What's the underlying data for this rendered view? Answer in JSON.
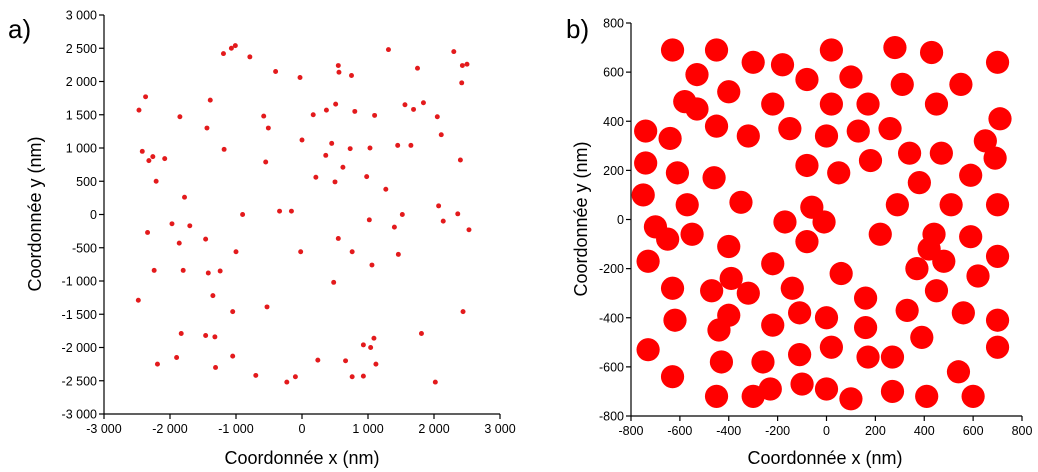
{
  "chart_data": [
    {
      "type": "scatter",
      "panel_label": "a)",
      "xlabel": "Coordonnée x (nm)",
      "ylabel": "Coordonnée y (nm)",
      "xlim": [
        -3000,
        3000
      ],
      "ylim": [
        -3000,
        3000
      ],
      "xticks": [
        -3000,
        -2000,
        -1000,
        0,
        1000,
        2000,
        3000
      ],
      "yticks": [
        -3000,
        -2500,
        -2000,
        -1500,
        -1000,
        -500,
        0,
        500,
        1000,
        1500,
        2000,
        2500,
        3000
      ],
      "xtick_labels": [
        "-3 000",
        "-2 000",
        "-1 000",
        "0",
        "1 000",
        "2 000",
        "3 000"
      ],
      "ytick_labels": [
        "-3 000",
        "-2 500",
        "-2 000",
        "-1 500",
        "-1 000",
        "-500",
        "0",
        "500",
        "1 000",
        "1 500",
        "2 000",
        "2 500",
        "3 000"
      ],
      "marker_color": "#e31a1c",
      "marker_size_nm": 75,
      "grid": false,
      "points": [
        [
          -1070,
          2500
        ],
        [
          -1010,
          2540
        ],
        [
          -1190,
          2420
        ],
        [
          -790,
          2370
        ],
        [
          -400,
          2150
        ],
        [
          -30,
          2060
        ],
        [
          550,
          2240
        ],
        [
          750,
          2090
        ],
        [
          1310,
          2480
        ],
        [
          2300,
          2450
        ],
        [
          2500,
          2260
        ],
        [
          2430,
          2240
        ],
        [
          1750,
          2200
        ],
        [
          2420,
          1980
        ],
        [
          -2470,
          1570
        ],
        [
          -2370,
          1770
        ],
        [
          -1850,
          1470
        ],
        [
          -1390,
          1720
        ],
        [
          -1440,
          1300
        ],
        [
          -580,
          1480
        ],
        [
          -510,
          1300
        ],
        [
          170,
          1500
        ],
        [
          370,
          1570
        ],
        [
          510,
          1660
        ],
        [
          560,
          2140
        ],
        [
          800,
          1550
        ],
        [
          1100,
          1490
        ],
        [
          1560,
          1650
        ],
        [
          1690,
          1580
        ],
        [
          1840,
          1680
        ],
        [
          2050,
          1470
        ],
        [
          2110,
          1200
        ],
        [
          -2420,
          950
        ],
        [
          -2320,
          810
        ],
        [
          -2260,
          870
        ],
        [
          -2080,
          840
        ],
        [
          -2210,
          500
        ],
        [
          -1180,
          980
        ],
        [
          -550,
          790
        ],
        [
          0,
          1120
        ],
        [
          210,
          560
        ],
        [
          360,
          890
        ],
        [
          450,
          1070
        ],
        [
          620,
          710
        ],
        [
          730,
          990
        ],
        [
          1030,
          1000
        ],
        [
          1450,
          1040
        ],
        [
          1650,
          1040
        ],
        [
          2400,
          820
        ],
        [
          -1780,
          260
        ],
        [
          -900,
          0
        ],
        [
          -340,
          50
        ],
        [
          -160,
          50
        ],
        [
          500,
          490
        ],
        [
          980,
          570
        ],
        [
          1270,
          380
        ],
        [
          1520,
          0
        ],
        [
          2070,
          130
        ],
        [
          2140,
          -100
        ],
        [
          2360,
          10
        ],
        [
          2530,
          -230
        ],
        [
          -2340,
          -270
        ],
        [
          -2240,
          -840
        ],
        [
          -1970,
          -140
        ],
        [
          -1860,
          -430
        ],
        [
          -1800,
          -840
        ],
        [
          -1700,
          -170
        ],
        [
          -1460,
          -370
        ],
        [
          -1420,
          -880
        ],
        [
          -1240,
          -850
        ],
        [
          -1350,
          -1220
        ],
        [
          -1000,
          -560
        ],
        [
          -1050,
          -1460
        ],
        [
          -20,
          -560
        ],
        [
          550,
          -360
        ],
        [
          760,
          -560
        ],
        [
          1020,
          -80
        ],
        [
          1060,
          -760
        ],
        [
          1400,
          -190
        ],
        [
          1460,
          -600
        ],
        [
          480,
          -1020
        ],
        [
          -2480,
          -1290
        ],
        [
          -530,
          -1390
        ],
        [
          -1460,
          -1820
        ],
        [
          -1900,
          -2150
        ],
        [
          -2190,
          -2250
        ],
        [
          -1830,
          -1790
        ],
        [
          -1320,
          -1840
        ],
        [
          -1310,
          -2300
        ],
        [
          -1050,
          -2130
        ],
        [
          -700,
          -2420
        ],
        [
          -230,
          -2520
        ],
        [
          -100,
          -2440
        ],
        [
          240,
          -2190
        ],
        [
          660,
          -2200
        ],
        [
          760,
          -2440
        ],
        [
          930,
          -2430
        ],
        [
          930,
          -1960
        ],
        [
          1040,
          -2000
        ],
        [
          1090,
          -1860
        ],
        [
          1120,
          -2250
        ],
        [
          1810,
          -1790
        ],
        [
          2020,
          -2520
        ],
        [
          2440,
          -1460
        ]
      ]
    },
    {
      "type": "scatter",
      "panel_label": "b)",
      "xlabel": "Coordonnée x (nm)",
      "ylabel": "Coordonnée y (nm)",
      "xlim": [
        -800,
        800
      ],
      "ylim": [
        -800,
        800
      ],
      "xticks": [
        -800,
        -600,
        -400,
        -200,
        0,
        200,
        400,
        600,
        800
      ],
      "yticks": [
        -800,
        -600,
        -400,
        -200,
        0,
        200,
        400,
        600,
        800
      ],
      "xtick_labels": [
        "-800",
        "-600",
        "-400",
        "-200",
        "0",
        "200",
        "400",
        "600",
        "800"
      ],
      "ytick_labels": [
        "-800",
        "-600",
        "-400",
        "-200",
        "0",
        "200",
        "400",
        "600",
        "800"
      ],
      "marker_color": "#ff0000",
      "marker_size_nm": 95,
      "grid": false,
      "points": [
        [
          -630,
          690
        ],
        [
          -450,
          690
        ],
        [
          -300,
          640
        ],
        [
          -180,
          630
        ],
        [
          20,
          690
        ],
        [
          280,
          700
        ],
        [
          430,
          680
        ],
        [
          700,
          640
        ],
        [
          -530,
          590
        ],
        [
          -400,
          520
        ],
        [
          -580,
          480
        ],
        [
          -530,
          450
        ],
        [
          -80,
          570
        ],
        [
          100,
          580
        ],
        [
          310,
          550
        ],
        [
          550,
          550
        ],
        [
          -740,
          360
        ],
        [
          -640,
          330
        ],
        [
          -450,
          380
        ],
        [
          -320,
          340
        ],
        [
          -220,
          470
        ],
        [
          20,
          470
        ],
        [
          170,
          470
        ],
        [
          450,
          470
        ],
        [
          -150,
          370
        ],
        [
          0,
          340
        ],
        [
          130,
          360
        ],
        [
          260,
          370
        ],
        [
          650,
          320
        ],
        [
          710,
          410
        ],
        [
          -740,
          230
        ],
        [
          -610,
          190
        ],
        [
          -460,
          170
        ],
        [
          -80,
          220
        ],
        [
          50,
          190
        ],
        [
          180,
          240
        ],
        [
          340,
          270
        ],
        [
          470,
          270
        ],
        [
          590,
          180
        ],
        [
          690,
          250
        ],
        [
          -750,
          100
        ],
        [
          -570,
          60
        ],
        [
          -350,
          70
        ],
        [
          -60,
          50
        ],
        [
          290,
          60
        ],
        [
          380,
          150
        ],
        [
          510,
          60
        ],
        [
          700,
          60
        ],
        [
          -700,
          -30
        ],
        [
          -550,
          -60
        ],
        [
          -650,
          -80
        ],
        [
          -170,
          -10
        ],
        [
          -10,
          -10
        ],
        [
          220,
          -60
        ],
        [
          440,
          -60
        ],
        [
          -400,
          -110
        ],
        [
          -80,
          -90
        ],
        [
          590,
          -70
        ],
        [
          -730,
          -170
        ],
        [
          -220,
          -180
        ],
        [
          60,
          -220
        ],
        [
          370,
          -200
        ],
        [
          480,
          -170
        ],
        [
          700,
          -150
        ],
        [
          -630,
          -280
        ],
        [
          -470,
          -290
        ],
        [
          -390,
          -240
        ],
        [
          -320,
          -300
        ],
        [
          -140,
          -280
        ],
        [
          160,
          -320
        ],
        [
          330,
          -370
        ],
        [
          450,
          -290
        ],
        [
          620,
          -230
        ],
        [
          -620,
          -410
        ],
        [
          -400,
          -390
        ],
        [
          -220,
          -430
        ],
        [
          -110,
          -380
        ],
        [
          0,
          -400
        ],
        [
          160,
          -440
        ],
        [
          390,
          -480
        ],
        [
          560,
          -380
        ],
        [
          700,
          -410
        ],
        [
          -730,
          -530
        ],
        [
          -440,
          -450
        ],
        [
          -110,
          -550
        ],
        [
          20,
          -520
        ],
        [
          170,
          -560
        ],
        [
          270,
          -560
        ],
        [
          540,
          -620
        ],
        [
          -630,
          -640
        ],
        [
          -430,
          -580
        ],
        [
          -260,
          -580
        ],
        [
          -450,
          -720
        ],
        [
          -300,
          -720
        ],
        [
          -100,
          -670
        ],
        [
          -230,
          -690
        ],
        [
          0,
          -690
        ],
        [
          100,
          -730
        ],
        [
          270,
          -700
        ],
        [
          410,
          -720
        ],
        [
          600,
          -720
        ],
        [
          700,
          -520
        ],
        [
          420,
          -120
        ]
      ]
    }
  ]
}
